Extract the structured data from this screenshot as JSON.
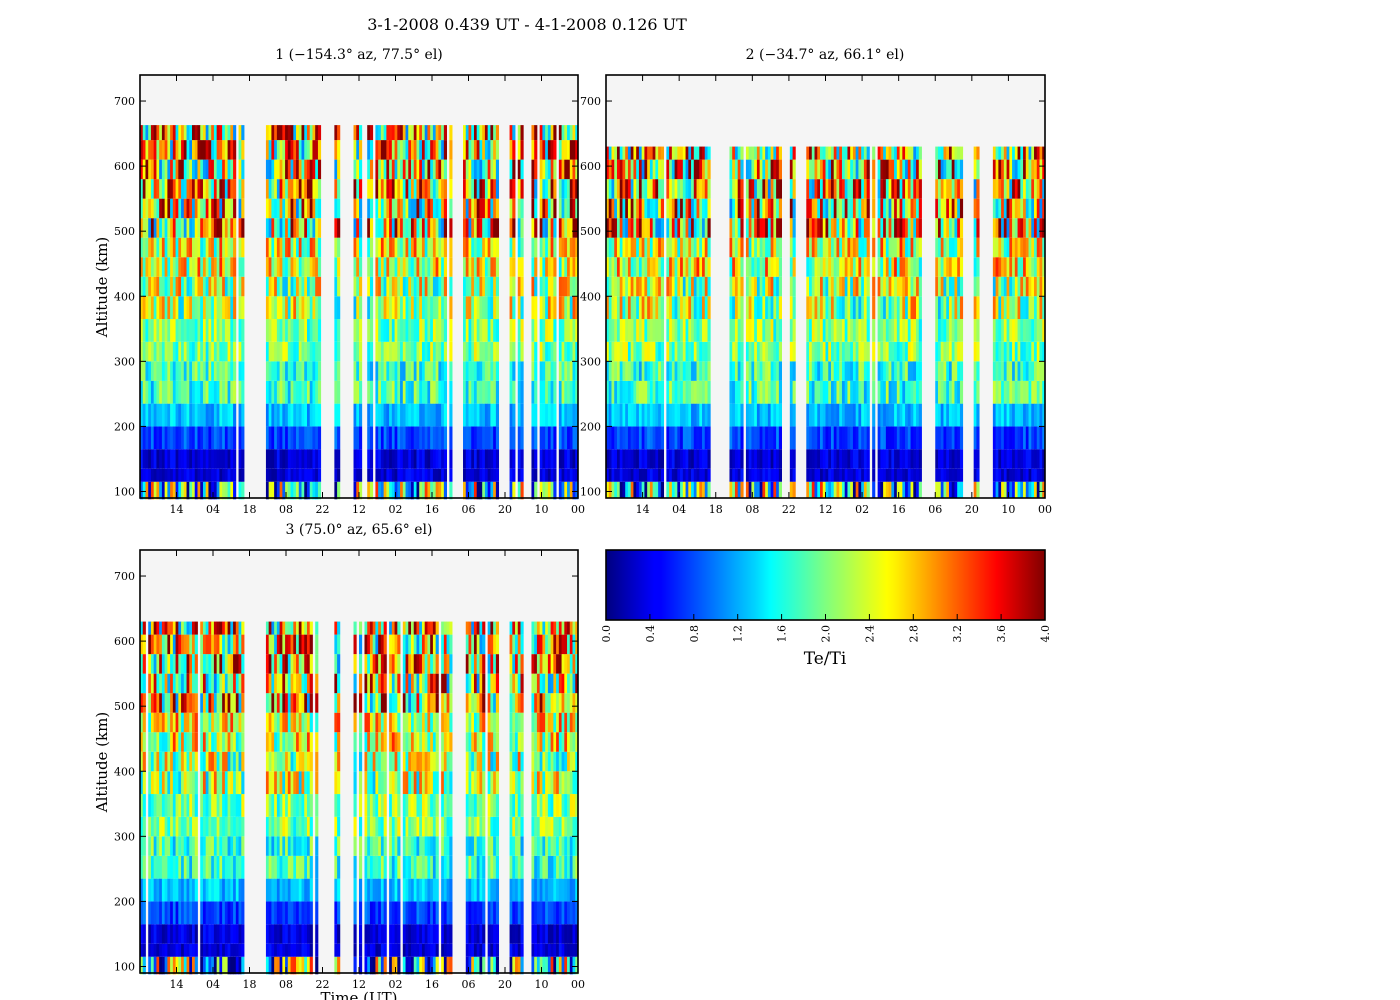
{
  "figure": {
    "title": "3-1-2008 0.439 UT - 4-1-2008 0.126 UT"
  },
  "chart_data": [
    {
      "type": "heatmap",
      "title": "1 (−154.3° az, 77.5° el)",
      "ylabel": "Altitude (km)",
      "xlabel": "",
      "yticks": [
        "100",
        "200",
        "300",
        "400",
        "500",
        "600",
        "700"
      ],
      "xticks": [
        "14",
        "04",
        "18",
        "08",
        "22",
        "12",
        "02",
        "16",
        "06",
        "20",
        "10",
        "00"
      ],
      "ylim": [
        90,
        740
      ],
      "data_top_km": 663,
      "data_bottom_km": 88,
      "column_count": 160,
      "gaps": [
        [
          0.235,
          0.285
        ],
        [
          0.41,
          0.445
        ],
        [
          0.455,
          0.485
        ],
        [
          0.715,
          0.74
        ],
        [
          0.82,
          0.845
        ],
        [
          0.875,
          0.895
        ]
      ],
      "no_data_color": "#f5f5f5"
    },
    {
      "type": "heatmap",
      "title": "2 (−34.7° az, 66.1° el)",
      "ylabel": "",
      "xlabel": "",
      "yticks": [
        "100",
        "200",
        "300",
        "400",
        "500",
        "600",
        "700"
      ],
      "xticks": [
        "14",
        "04",
        "18",
        "08",
        "22",
        "12",
        "02",
        "16",
        "06",
        "20",
        "10",
        "00"
      ],
      "ylim": [
        90,
        740
      ],
      "data_top_km": 630,
      "data_bottom_km": 90,
      "column_count": 160,
      "gaps": [
        [
          0.235,
          0.28
        ],
        [
          0.4,
          0.42
        ],
        [
          0.43,
          0.455
        ],
        [
          0.72,
          0.745
        ],
        [
          0.81,
          0.835
        ],
        [
          0.85,
          0.88
        ]
      ],
      "no_data_color": "#f5f5f5"
    },
    {
      "type": "heatmap",
      "title": "3 (75.0° az, 65.6° el)",
      "ylabel": "Altitude (km)",
      "xlabel": "Time (UT)",
      "yticks": [
        "100",
        "200",
        "300",
        "400",
        "500",
        "600",
        "700"
      ],
      "xticks": [
        "14",
        "04",
        "18",
        "08",
        "22",
        "12",
        "02",
        "16",
        "06",
        "20",
        "10",
        "00"
      ],
      "ylim": [
        90,
        740
      ],
      "data_top_km": 630,
      "data_bottom_km": 88,
      "column_count": 160,
      "gaps": [
        [
          0.235,
          0.285
        ],
        [
          0.41,
          0.445
        ],
        [
          0.455,
          0.485
        ],
        [
          0.715,
          0.74
        ],
        [
          0.82,
          0.845
        ],
        [
          0.875,
          0.895
        ]
      ],
      "no_data_color": "#f5f5f5"
    }
  ],
  "colorbar": {
    "label": "Te/Ti",
    "ticks": [
      "0.0",
      "0.4",
      "0.8",
      "1.2",
      "1.6",
      "2.0",
      "2.4",
      "2.8",
      "3.2",
      "3.6",
      "4.0"
    ],
    "range": [
      0,
      4
    ],
    "colormap": "jet"
  }
}
